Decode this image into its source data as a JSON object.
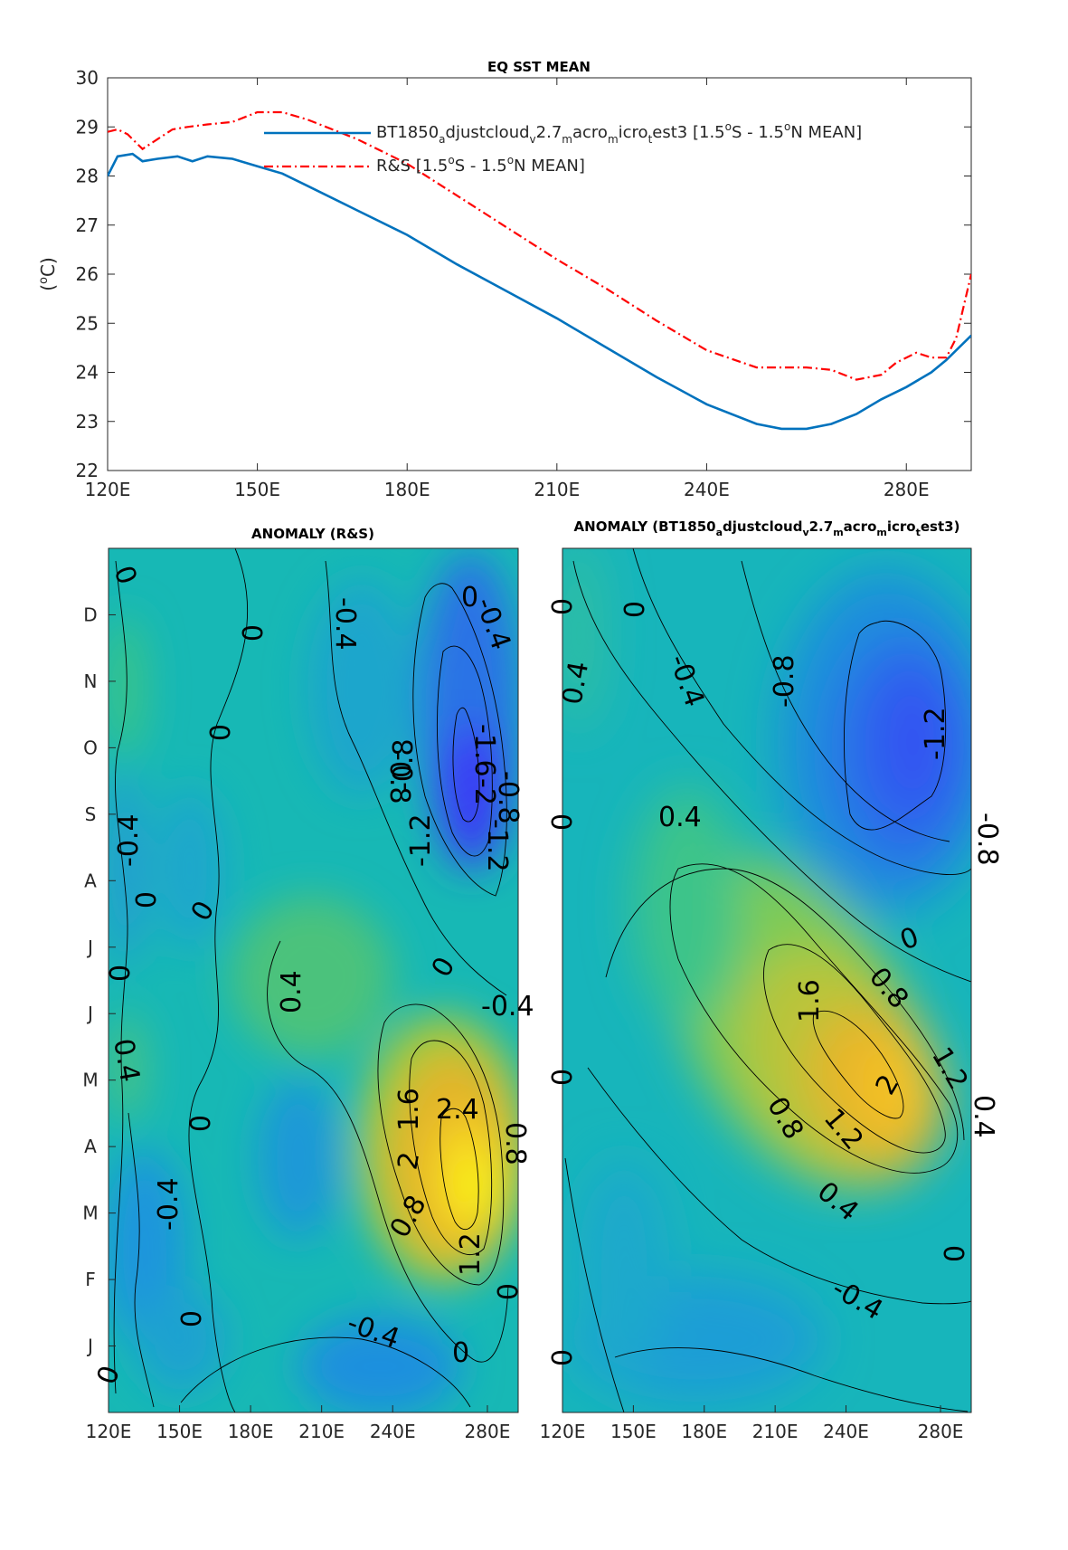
{
  "chart_data": [
    {
      "type": "line",
      "title": "EQ SST MEAN",
      "ylabel": "(°C)",
      "xlabel": "",
      "xlim": [
        120,
        293
      ],
      "ylim": [
        22,
        30
      ],
      "xticks": [
        120,
        150,
        180,
        210,
        240,
        280
      ],
      "xtick_labels": [
        "120E",
        "150E",
        "180E",
        "210E",
        "240E",
        "280E"
      ],
      "yticks": [
        22,
        23,
        24,
        25,
        26,
        27,
        28,
        29,
        30
      ],
      "ytick_labels": [
        "22",
        "23",
        "24",
        "25",
        "26",
        "27",
        "28",
        "29",
        "30"
      ],
      "legend_position": "top-center",
      "series": [
        {
          "name": "BT1850_adjustcloud_v2.7_macro_micro_test3 [1.5°S - 1.5°N MEAN]",
          "color": "#0072BD",
          "style": "solid",
          "x": [
            120,
            122,
            125,
            127,
            130,
            134,
            137,
            140,
            145,
            150,
            155,
            160,
            170,
            180,
            190,
            200,
            210,
            220,
            230,
            240,
            250,
            255,
            260,
            265,
            270,
            275,
            280,
            285,
            288,
            290,
            293
          ],
          "values": [
            28.0,
            28.4,
            28.45,
            28.3,
            28.35,
            28.4,
            28.3,
            28.4,
            28.35,
            28.2,
            28.05,
            27.8,
            27.3,
            26.8,
            26.2,
            25.65,
            25.1,
            24.5,
            23.9,
            23.35,
            22.95,
            22.85,
            22.85,
            22.95,
            23.15,
            23.45,
            23.7,
            24.0,
            24.25,
            24.45,
            24.75
          ]
        },
        {
          "name": "R&S [1.5°S - 1.5°N MEAN]",
          "color": "#FF0000",
          "style": "dash-dot",
          "x": [
            120,
            122,
            124,
            127,
            130,
            133,
            136,
            140,
            145,
            150,
            155,
            160,
            170,
            180,
            190,
            200,
            210,
            220,
            230,
            240,
            250,
            260,
            265,
            270,
            275,
            278,
            282,
            285,
            288,
            290,
            293
          ],
          "values": [
            28.9,
            28.95,
            28.85,
            28.55,
            28.75,
            28.95,
            29.0,
            29.05,
            29.1,
            29.3,
            29.3,
            29.15,
            28.75,
            28.25,
            27.6,
            26.95,
            26.3,
            25.7,
            25.05,
            24.45,
            24.1,
            24.1,
            24.05,
            23.85,
            23.95,
            24.2,
            24.4,
            24.3,
            24.3,
            24.7,
            26.0
          ]
        }
      ]
    },
    {
      "type": "heatmap",
      "title": "ANOMALY (R&S)",
      "xlim": [
        120,
        293
      ],
      "xticks": [
        120,
        150,
        180,
        210,
        240,
        280
      ],
      "xtick_labels": [
        "120E",
        "150E",
        "180E",
        "210E",
        "240E",
        "280E"
      ],
      "ytick_labels": [
        "J",
        "F",
        "M",
        "A",
        "M",
        "J",
        "J",
        "A",
        "S",
        "O",
        "N",
        "D"
      ],
      "colormap": "parula",
      "contour_labels": [
        "0",
        "0",
        "-0.4",
        "0",
        "0",
        "-0.4",
        "-0.8",
        "-1.6",
        "-2",
        "-1.2",
        "-0.8",
        "-0.8",
        "-1.2",
        "-0.4",
        "0",
        "0",
        "0",
        "-0.4",
        "0.4",
        "0",
        "-0.4",
        "0.4",
        "0",
        "1.6",
        "2.4",
        "2",
        "0.8",
        "0.8",
        "1.2",
        "0",
        "-0.4",
        "0",
        "0",
        "0"
      ]
    },
    {
      "type": "heatmap",
      "title": "ANOMALY (BT1850_adjustcloud_v2.7_macro_micro_test3)",
      "xlim": [
        120,
        293
      ],
      "xticks": [
        120,
        150,
        180,
        210,
        240,
        280
      ],
      "xtick_labels": [
        "120E",
        "150E",
        "180E",
        "210E",
        "240E",
        "280E"
      ],
      "colormap": "parula",
      "contour_labels": [
        "0",
        "0.4",
        "-0.4",
        "0",
        "-0.8",
        "-1.2",
        "0.4",
        "0",
        "-0.8",
        "0",
        "0.8",
        "1.6",
        "2",
        "1.2",
        "0",
        "0.8",
        "1.2",
        "0.4",
        "0.4",
        "0",
        "-0.4",
        "0"
      ]
    }
  ]
}
